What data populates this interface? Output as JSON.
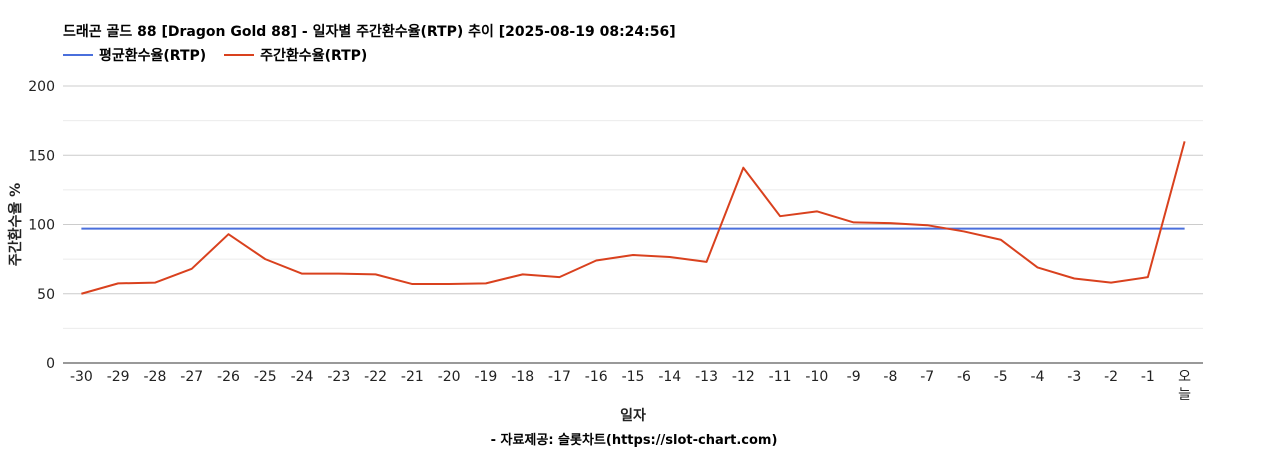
{
  "chart_data": {
    "type": "line",
    "title": "드래곤 골드 88 [Dragon Gold 88] - 일자별 주간환수율(RTP) 추이 [2025-08-19 08:24:56]",
    "xlabel": "일자",
    "ylabel": "주간환수율 %",
    "source": "- 자료제공: 슬롯차트(https://slot-chart.com)",
    "ylim": [
      0,
      200
    ],
    "yticks": [
      0,
      50,
      100,
      150,
      200
    ],
    "grid": true,
    "legend_position": "top-left",
    "categories": [
      "-30",
      "-29",
      "-28",
      "-27",
      "-26",
      "-25",
      "-24",
      "-23",
      "-22",
      "-21",
      "-20",
      "-19",
      "-18",
      "-17",
      "-16",
      "-15",
      "-14",
      "-13",
      "-12",
      "-11",
      "-10",
      "-9",
      "-8",
      "-7",
      "-6",
      "-5",
      "-4",
      "-3",
      "-2",
      "-1",
      "오늘"
    ],
    "series": [
      {
        "name": "평균환수율(RTP)",
        "color": "#4a6fdc",
        "values": [
          97,
          97,
          97,
          97,
          97,
          97,
          97,
          97,
          97,
          97,
          97,
          97,
          97,
          97,
          97,
          97,
          97,
          97,
          97,
          97,
          97,
          97,
          97,
          97,
          97,
          97,
          97,
          97,
          97,
          97,
          97
        ]
      },
      {
        "name": "주간환수율(RTP)",
        "color": "#d9411e",
        "values": [
          50,
          57.5,
          58,
          68,
          93,
          75,
          64.5,
          64.5,
          64,
          57,
          57,
          57.5,
          64,
          62,
          74,
          78,
          76.5,
          73,
          141,
          106,
          109.5,
          101.5,
          101,
          99.5,
          95,
          89,
          69,
          61,
          58,
          62,
          160
        ]
      }
    ]
  }
}
